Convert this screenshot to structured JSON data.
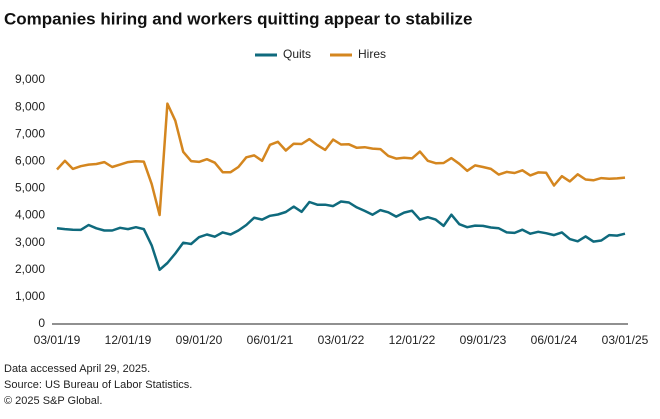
{
  "chart_data": {
    "type": "line",
    "title": "Companies hiring and workers quitting appear to stabilize",
    "categories": [
      "03/01/19",
      null,
      null,
      null,
      null,
      null,
      null,
      null,
      null,
      "12/01/19",
      null,
      null,
      null,
      null,
      null,
      null,
      null,
      null,
      "09/01/20",
      null,
      null,
      null,
      null,
      null,
      null,
      null,
      null,
      "06/01/21",
      null,
      null,
      null,
      null,
      null,
      null,
      null,
      null,
      "03/01/22",
      null,
      null,
      null,
      null,
      null,
      null,
      null,
      null,
      "12/01/22",
      null,
      null,
      null,
      null,
      null,
      null,
      null,
      null,
      "09/01/23",
      null,
      null,
      null,
      null,
      null,
      null,
      null,
      null,
      "06/01/24",
      null,
      null,
      null,
      null,
      null,
      null,
      null,
      null,
      "03/01/25"
    ],
    "series": [
      {
        "name": "Quits",
        "color": "#0f6a7d",
        "values": [
          3530,
          3500,
          3480,
          3470,
          3650,
          3530,
          3450,
          3450,
          3550,
          3500,
          3570,
          3500,
          2900,
          2000,
          2250,
          2600,
          3000,
          2950,
          3200,
          3300,
          3220,
          3380,
          3300,
          3450,
          3650,
          3920,
          3850,
          3990,
          4040,
          4130,
          4330,
          4140,
          4500,
          4400,
          4400,
          4350,
          4520,
          4480,
          4300,
          4170,
          4030,
          4200,
          4120,
          3960,
          4110,
          4180,
          3850,
          3940,
          3850,
          3620,
          4030,
          3680,
          3570,
          3630,
          3620,
          3560,
          3530,
          3380,
          3360,
          3480,
          3330,
          3400,
          3350,
          3280,
          3380,
          3130,
          3050,
          3230,
          3040,
          3080,
          3280,
          3260,
          3330
        ]
      },
      {
        "name": "Hires",
        "color": "#d4861f",
        "values": [
          5700,
          6020,
          5720,
          5820,
          5880,
          5900,
          5970,
          5790,
          5880,
          5970,
          6000,
          5990,
          5160,
          4020,
          8130,
          7500,
          6350,
          6010,
          5980,
          6080,
          5950,
          5600,
          5600,
          5790,
          6150,
          6220,
          6020,
          6610,
          6720,
          6400,
          6650,
          6640,
          6820,
          6600,
          6420,
          6800,
          6620,
          6630,
          6500,
          6520,
          6470,
          6450,
          6200,
          6100,
          6130,
          6110,
          6360,
          6020,
          5930,
          5940,
          6120,
          5910,
          5650,
          5850,
          5790,
          5720,
          5510,
          5610,
          5570,
          5670,
          5480,
          5590,
          5580,
          5110,
          5450,
          5260,
          5520,
          5330,
          5300,
          5380,
          5360,
          5370,
          5400
        ]
      }
    ],
    "ylim": [
      0,
      9000
    ],
    "yticks": [
      0,
      {
        "value": 1000,
        "label": "1,000"
      },
      {
        "value": 2000,
        "label": "2,000"
      },
      {
        "value": 3000,
        "label": "3,000"
      },
      {
        "value": 4000,
        "label": "4,000"
      },
      {
        "value": 5000,
        "label": "5,000"
      },
      {
        "value": 6000,
        "label": "6,000"
      },
      {
        "value": 7000,
        "label": "7,000"
      },
      {
        "value": 8000,
        "label": "8,000"
      },
      {
        "value": 9000,
        "label": "9,000"
      }
    ],
    "grid": false,
    "legend": "top",
    "notes": [
      "Data accessed April 29, 2025.",
      "Source: US Bureau of Labor Statistics.",
      "© 2025 S&P Global."
    ]
  }
}
